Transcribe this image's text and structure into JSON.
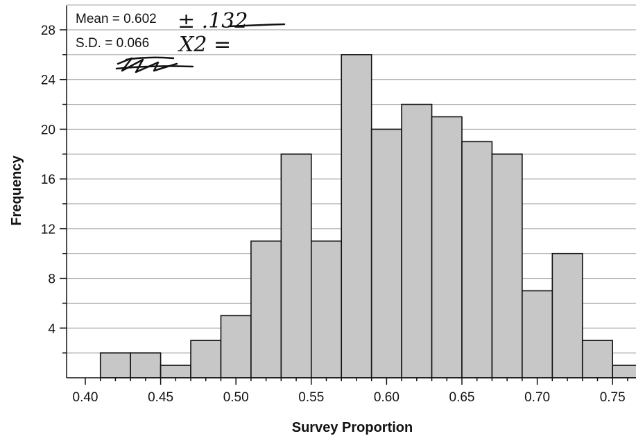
{
  "chart_data": {
    "type": "bar",
    "title": "",
    "xlabel": "Survey Proportion",
    "ylabel": "Frequency",
    "xlim": [
      0.39,
      0.76
    ],
    "ylim": [
      0,
      30
    ],
    "bin_width": 0.02,
    "bins": [
      {
        "start": 0.41,
        "value": 2
      },
      {
        "start": 0.43,
        "value": 2
      },
      {
        "start": 0.45,
        "value": 1
      },
      {
        "start": 0.47,
        "value": 3
      },
      {
        "start": 0.49,
        "value": 5
      },
      {
        "start": 0.51,
        "value": 11
      },
      {
        "start": 0.53,
        "value": 18
      },
      {
        "start": 0.55,
        "value": 11
      },
      {
        "start": 0.57,
        "value": 26
      },
      {
        "start": 0.59,
        "value": 20
      },
      {
        "start": 0.61,
        "value": 22
      },
      {
        "start": 0.63,
        "value": 21
      },
      {
        "start": 0.65,
        "value": 19
      },
      {
        "start": 0.67,
        "value": 18
      },
      {
        "start": 0.69,
        "value": 7
      },
      {
        "start": 0.71,
        "value": 10
      },
      {
        "start": 0.73,
        "value": 3
      },
      {
        "start": 0.75,
        "value": 1
      }
    ],
    "x_ticks": [
      "0.40",
      "0.45",
      "0.50",
      "0.55",
      "0.60",
      "0.65",
      "0.70",
      "0.75"
    ],
    "y_ticks": [
      "4",
      "8",
      "12",
      "16",
      "20",
      "24",
      "28"
    ],
    "grid": true,
    "colors": {
      "bar_fill": "#c7c7c7",
      "bar_edge": "#111111",
      "grid": "#9a9a9a"
    },
    "annotations": {
      "mean_label": "Mean = 0.602",
      "sd_label": "S.D. = 0.066",
      "handwritten_mean": "± .132",
      "handwritten_sd": "X2 ="
    }
  }
}
